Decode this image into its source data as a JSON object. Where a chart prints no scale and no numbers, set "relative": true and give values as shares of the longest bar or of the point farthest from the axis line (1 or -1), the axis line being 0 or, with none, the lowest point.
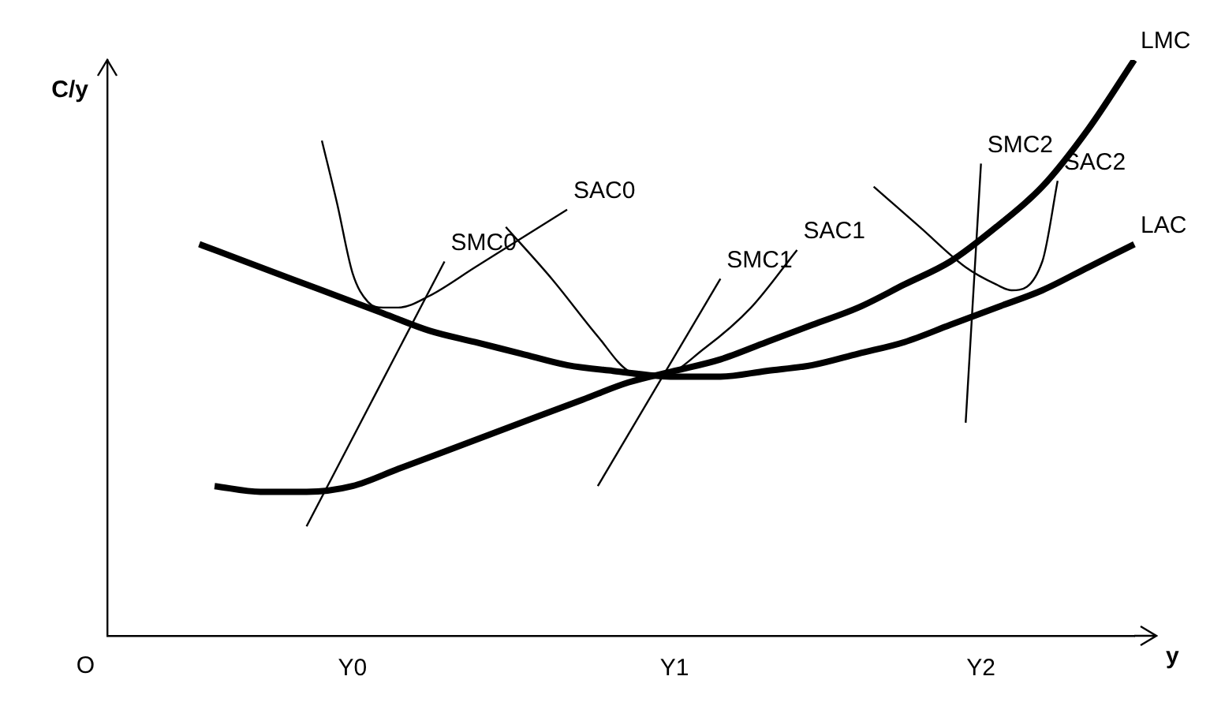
{
  "chart_data": {
    "type": "line",
    "relative": true,
    "xlabel": "y",
    "ylabel": "C/y",
    "annotations": [
      "O"
    ],
    "grid": false,
    "legend": false,
    "marker": "none",
    "line_style": "solid",
    "categories": [
      null,
      null,
      null,
      null,
      null,
      null,
      null,
      null,
      null,
      null,
      null,
      null,
      null,
      null,
      null,
      null,
      "Y0",
      null,
      null,
      null,
      null,
      null,
      null,
      null,
      null,
      null,
      null,
      null,
      null,
      null,
      null,
      null,
      null,
      null,
      null,
      null,
      null,
      "Y1",
      null,
      null,
      null,
      null,
      null,
      null,
      null,
      null,
      null,
      null,
      null,
      null,
      null,
      null,
      null,
      null,
      null,
      null,
      null,
      "Y2",
      null,
      null,
      null,
      null,
      null,
      null,
      null,
      null,
      null,
      null
    ],
    "series": [
      {
        "name": "LAC",
        "color": "#000000",
        "values": [
          null,
          null,
          null,
          null,
          null,
          null,
          0.68,
          null,
          null,
          0.65,
          null,
          null,
          0.62,
          null,
          null,
          0.59,
          null,
          null,
          0.56,
          null,
          null,
          0.53,
          null,
          null,
          0.51,
          null,
          null,
          0.49,
          null,
          null,
          0.47,
          null,
          null,
          0.46,
          null,
          null,
          null,
          0.45,
          null,
          null,
          0.45,
          null,
          null,
          0.46,
          null,
          null,
          0.47,
          null,
          null,
          0.49,
          null,
          null,
          0.51,
          null,
          null,
          0.54,
          null,
          null,
          0.57,
          null,
          null,
          0.6,
          null,
          null,
          0.64,
          null,
          null,
          0.68
        ]
      },
      {
        "name": "LMC",
        "color": "#000000",
        "values": [
          null,
          null,
          null,
          null,
          null,
          null,
          null,
          0.26,
          null,
          null,
          0.25,
          null,
          null,
          0.25,
          null,
          null,
          0.26,
          null,
          null,
          0.29,
          null,
          null,
          0.32,
          null,
          null,
          0.35,
          null,
          null,
          0.38,
          null,
          null,
          0.41,
          null,
          null,
          0.44,
          null,
          null,
          0.46,
          null,
          null,
          0.48,
          null,
          null,
          0.51,
          null,
          null,
          0.54,
          null,
          null,
          0.57,
          null,
          null,
          0.61,
          null,
          null,
          0.65,
          null,
          null,
          0.71,
          null,
          null,
          0.78,
          null,
          null,
          0.88,
          null,
          null,
          1
        ]
      },
      {
        "name": "SMC0",
        "color": "#000000",
        "values": [
          null,
          null,
          null,
          null,
          null,
          null,
          null,
          null,
          null,
          null,
          null,
          null,
          null,
          0.19,
          null,
          null,
          null,
          null,
          null,
          null,
          null,
          null,
          0.65,
          null,
          null,
          null,
          null,
          null,
          null,
          null,
          null,
          null,
          null,
          null,
          null,
          null,
          null,
          null,
          null,
          null,
          null,
          null,
          null,
          null,
          null,
          null,
          null,
          null,
          null,
          null,
          null,
          null,
          null,
          null,
          null,
          null,
          null,
          null,
          null,
          null,
          null,
          null,
          null,
          null,
          null,
          null,
          null,
          null
        ]
      },
      {
        "name": "SAC0",
        "color": "#000000",
        "values": [
          null,
          null,
          null,
          null,
          null,
          null,
          null,
          null,
          null,
          null,
          null,
          null,
          null,
          null,
          0.86,
          0.75,
          0.63,
          0.58,
          0.57,
          0.57,
          null,
          0.59,
          null,
          null,
          0.64,
          null,
          null,
          0.69,
          null,
          null,
          0.74,
          null,
          null,
          null,
          null,
          null,
          null,
          null,
          null,
          null,
          null,
          null,
          null,
          null,
          null,
          null,
          null,
          null,
          null,
          null,
          null,
          null,
          null,
          null,
          null,
          null,
          null,
          null,
          null,
          null,
          null,
          null,
          null,
          null,
          null,
          null,
          null,
          null
        ]
      },
      {
        "name": "SMC1",
        "color": "#000000",
        "values": [
          null,
          null,
          null,
          null,
          null,
          null,
          null,
          null,
          null,
          null,
          null,
          null,
          null,
          null,
          null,
          null,
          null,
          null,
          null,
          null,
          null,
          null,
          null,
          null,
          null,
          null,
          null,
          null,
          null,
          null,
          null,
          null,
          0.26,
          null,
          null,
          null,
          null,
          null,
          null,
          null,
          0.62,
          null,
          null,
          null,
          null,
          null,
          null,
          null,
          null,
          null,
          null,
          null,
          null,
          null,
          null,
          null,
          null,
          null,
          null,
          null,
          null,
          null,
          null,
          null,
          null,
          null,
          null,
          null
        ]
      },
      {
        "name": "SAC1",
        "color": "#000000",
        "values": [
          null,
          null,
          null,
          null,
          null,
          null,
          null,
          null,
          null,
          null,
          null,
          null,
          null,
          null,
          null,
          null,
          null,
          null,
          null,
          null,
          null,
          null,
          null,
          null,
          null,
          null,
          0.71,
          null,
          null,
          0.62,
          null,
          null,
          0.52,
          null,
          0.46,
          null,
          0.45,
          null,
          null,
          0.5,
          null,
          null,
          0.57,
          null,
          null,
          0.67,
          null,
          null,
          null,
          null,
          null,
          null,
          null,
          null,
          null,
          null,
          null,
          null,
          null,
          null,
          null,
          null,
          null,
          null,
          null,
          null,
          null,
          null
        ]
      },
      {
        "name": "SMC2",
        "color": "#000000",
        "values": [
          null,
          null,
          null,
          null,
          null,
          null,
          null,
          null,
          null,
          null,
          null,
          null,
          null,
          null,
          null,
          null,
          null,
          null,
          null,
          null,
          null,
          null,
          null,
          null,
          null,
          null,
          null,
          null,
          null,
          null,
          null,
          null,
          null,
          null,
          null,
          null,
          null,
          null,
          null,
          null,
          null,
          null,
          null,
          null,
          null,
          null,
          null,
          null,
          null,
          null,
          null,
          null,
          null,
          null,
          null,
          null,
          0.37,
          0.82,
          null,
          null,
          null,
          null,
          null,
          null,
          null,
          null,
          null,
          null
        ]
      },
      {
        "name": "SAC2",
        "color": "#000000",
        "values": [
          null,
          null,
          null,
          null,
          null,
          null,
          null,
          null,
          null,
          null,
          null,
          null,
          null,
          null,
          null,
          null,
          null,
          null,
          null,
          null,
          null,
          null,
          null,
          null,
          null,
          null,
          null,
          null,
          null,
          null,
          null,
          null,
          null,
          null,
          null,
          null,
          null,
          null,
          null,
          null,
          null,
          null,
          null,
          null,
          null,
          null,
          null,
          null,
          null,
          null,
          0.78,
          null,
          null,
          0.71,
          null,
          null,
          0.64,
          null,
          0.61,
          0.6,
          null,
          0.65,
          0.79,
          null,
          null,
          null,
          null,
          null
        ]
      }
    ]
  }
}
